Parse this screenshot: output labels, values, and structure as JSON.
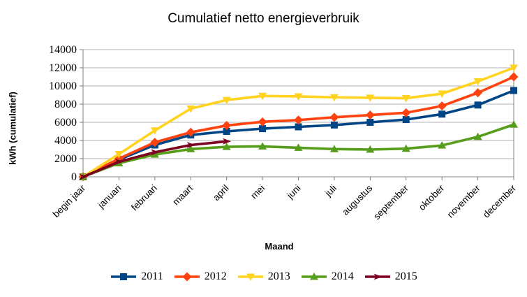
{
  "title": "Cumulatief netto energieverbruik",
  "chart_data": {
    "type": "line",
    "title": "Cumulatief netto energieverbruik",
    "xlabel": "Maand",
    "ylabel": "kWh (cumulatief)",
    "categories": [
      "begin jaar",
      "januari",
      "februari",
      "maart",
      "april",
      "mei",
      "juni",
      "juli",
      "augustus",
      "september",
      "oktober",
      "november",
      "december"
    ],
    "series": [
      {
        "name": "2011",
        "color": "#004586",
        "marker": "square",
        "values": [
          0,
          1900,
          3500,
          4600,
          5000,
          5300,
          5500,
          5700,
          6000,
          6300,
          6900,
          7900,
          9500
        ]
      },
      {
        "name": "2012",
        "color": "#FF420E",
        "marker": "diamond",
        "values": [
          0,
          2000,
          3800,
          4900,
          5650,
          6050,
          6250,
          6550,
          6800,
          7050,
          7800,
          9250,
          11000
        ]
      },
      {
        "name": "2013",
        "color": "#FFD320",
        "marker": "triangle-down",
        "values": [
          0,
          2500,
          5100,
          7500,
          8450,
          8900,
          8850,
          8750,
          8700,
          8650,
          9150,
          10500,
          12000
        ]
      },
      {
        "name": "2014",
        "color": "#579D1C",
        "marker": "triangle-up",
        "values": [
          0,
          1500,
          2450,
          3050,
          3300,
          3350,
          3200,
          3050,
          3000,
          3100,
          3450,
          4400,
          5750
        ]
      },
      {
        "name": "2015",
        "color": "#7E0021",
        "marker": "arrow-right",
        "values": [
          0,
          1650,
          2700,
          3500,
          3900
        ]
      }
    ],
    "ylim": [
      0,
      14000
    ],
    "ytick_step": 2000,
    "yticks": [
      0,
      2000,
      4000,
      6000,
      8000,
      10000,
      12000,
      14000
    ],
    "grid": true,
    "legend_position": "bottom",
    "gridline_color": "#b3b3b3",
    "axis_color": "#808080"
  }
}
